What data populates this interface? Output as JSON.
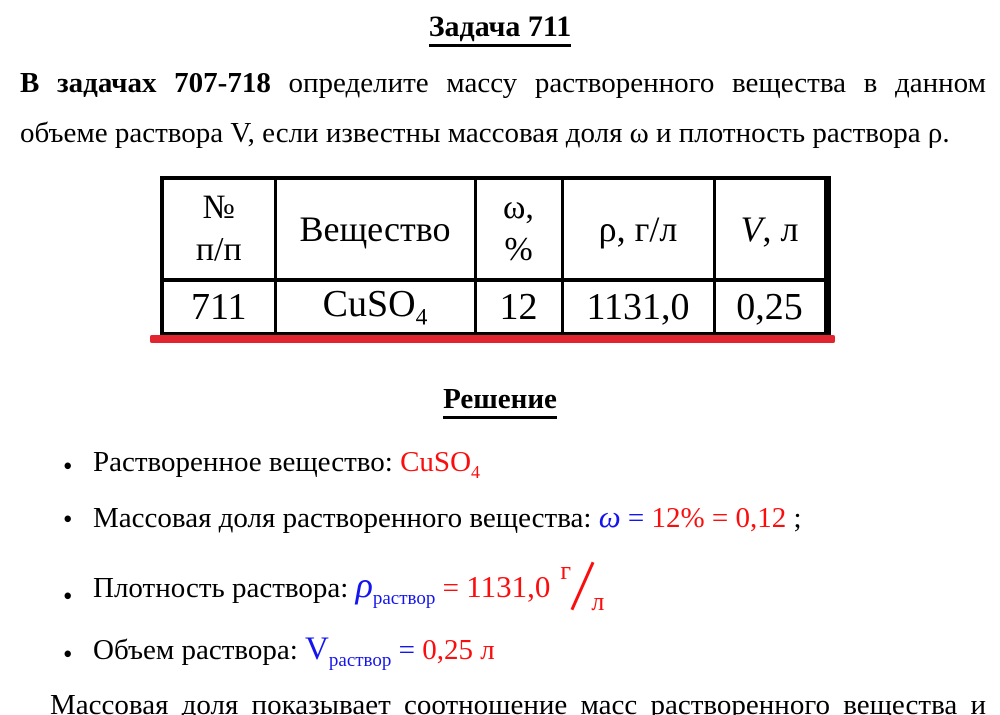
{
  "title": "Задача 711",
  "intro": {
    "bold": "В задачах 707-718",
    "rest": " определите массу растворенного вещества в данном объеме раствора V, если известны массовая доля ω и плотность раствора ρ."
  },
  "table": {
    "headers": {
      "num_top": "№",
      "num_bottom": "п/п",
      "substance": "Вещество",
      "omega_top": "ω,",
      "omega_bottom": "%",
      "density": "ρ, г/л",
      "volume_symbol": "V",
      "volume_unit": ", л"
    },
    "row": {
      "num": "711",
      "substance_base": "CuSO",
      "substance_sub": "4",
      "omega": "12",
      "density": "1131,0",
      "volume": "0,25"
    }
  },
  "solution_heading": "Решение",
  "bullets": {
    "solute": {
      "label": "Растворенное вещество: ",
      "chem_base": "CuSO",
      "chem_sub": "4"
    },
    "mass_fraction": {
      "label": "Массовая доля растворенного вещества: ",
      "symbol": "ω",
      "equals": " = ",
      "value": "12% = 0,12",
      "tail": " ;"
    },
    "density": {
      "label": "Плотность раствора: ",
      "symbol": "ρ",
      "subscript": "раствор",
      "equals": " = ",
      "value": "1131,0",
      "unit_top": "г",
      "unit_bottom": "л"
    },
    "volume": {
      "label": "Объем раствора: ",
      "symbol": "V",
      "subscript": "раствор",
      "equals": " = ",
      "value": "0,25 л"
    }
  },
  "footer_text": "Массовая доля показывает соотношение масс растворенного вещества и",
  "colors": {
    "formula_red": "#fb0d0d",
    "formula_blue": "#1414f0",
    "accent_red_line": "#e2242e",
    "text_black": "#000000"
  }
}
